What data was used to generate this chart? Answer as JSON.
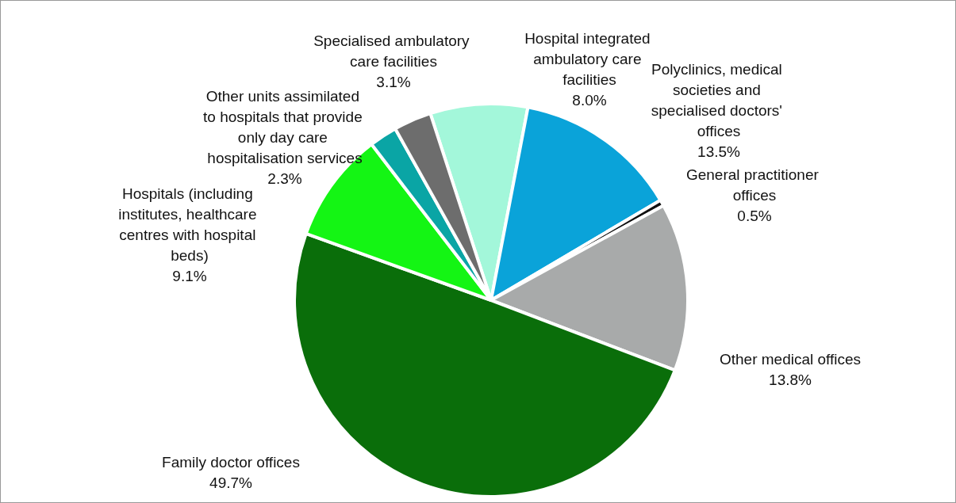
{
  "chart_data": {
    "type": "pie",
    "categories": [
      "Hospital integrated ambulatory care facilities",
      "Polyclinics, medical societies and specialised doctors' offices",
      "General practitioner offices",
      "Other medical offices",
      "Family doctor offices",
      "Hospitals (including institutes, healthcare centres with hospital beds)",
      "Other units assimilated to hospitals that provide only day care hospitalisation services",
      "Specialised ambulatory care facilities"
    ],
    "values": [
      8.0,
      13.5,
      0.5,
      13.8,
      49.7,
      9.1,
      2.3,
      3.1
    ],
    "value_labels": [
      "8.0%",
      "13.5%",
      "0.5%",
      "13.8%",
      "49.7%",
      "9.1%",
      "2.3%",
      "3.1%"
    ],
    "colors": [
      "#a3f7da",
      "#0aa3d9",
      "#111111",
      "#a8aaaa",
      "#0a6e0a",
      "#14f514",
      "#0aa5a5",
      "#6d6d6d"
    ],
    "legend": false
  }
}
